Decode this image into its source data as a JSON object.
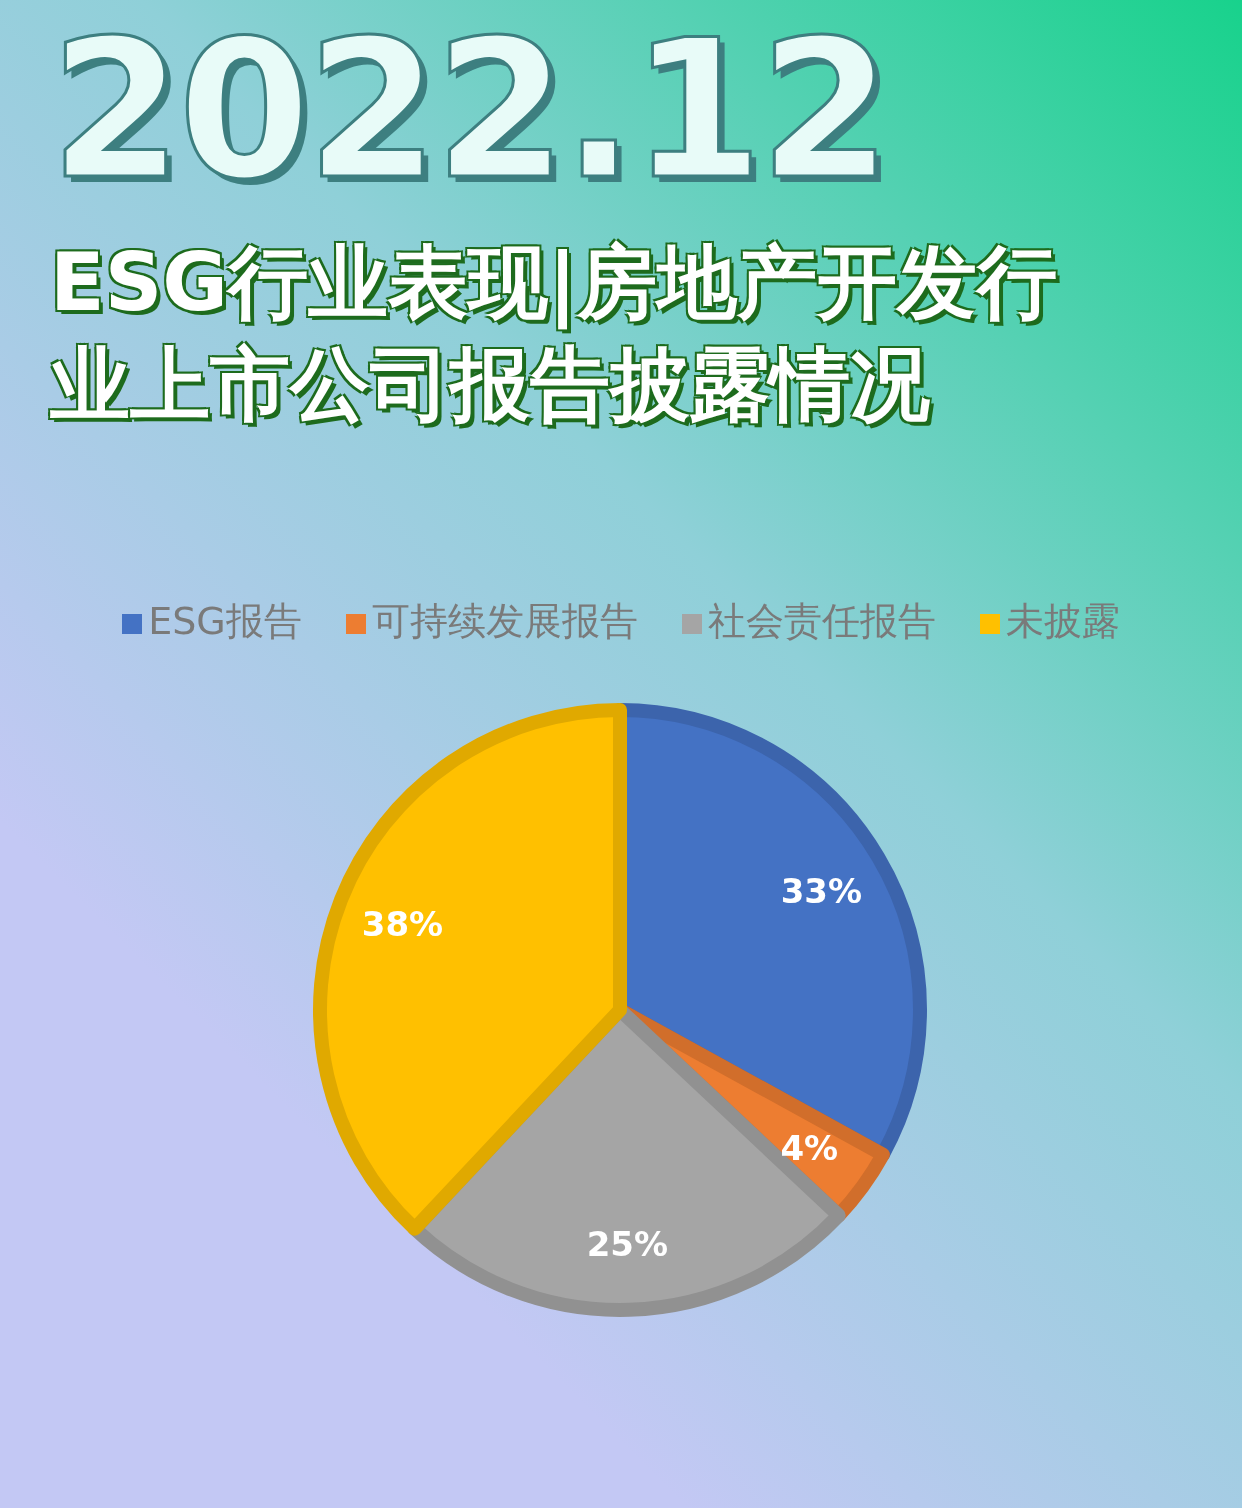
{
  "chart_data": {
    "type": "pie",
    "subtitle": "2022.12",
    "title": "ESG行业表现|房地产开发行业上市公司报告披露情况",
    "categories": [
      "ESG报告",
      "可持续发展报告",
      "社会责任报告",
      "未披露"
    ],
    "values": [
      33,
      4,
      25,
      38
    ],
    "colors": [
      "#4472c4",
      "#ed7d31",
      "#a5a5a5",
      "#ffc000"
    ],
    "value_labels": [
      "33%",
      "4%",
      "25%",
      "38%"
    ],
    "legend": "top"
  }
}
